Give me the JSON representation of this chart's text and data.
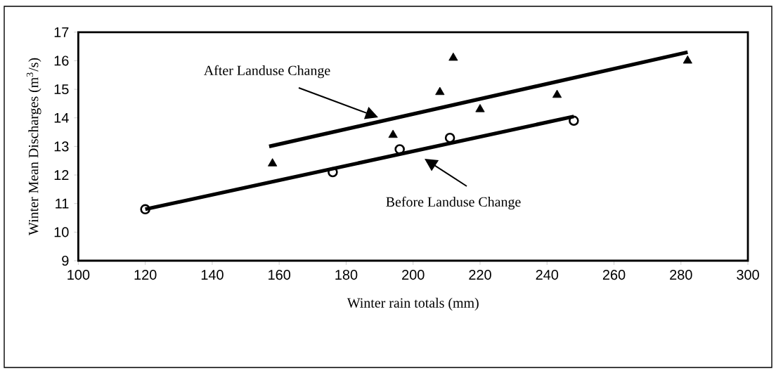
{
  "chart_data": {
    "type": "scatter",
    "xlabel": "Winter rain totals (mm)",
    "ylabel": "Winter Mean Discharges (m$^{3}$/s)",
    "xlim": [
      100,
      300
    ],
    "ylim": [
      9,
      17
    ],
    "xticks": [
      100,
      120,
      140,
      160,
      180,
      200,
      220,
      240,
      260,
      280,
      300
    ],
    "yticks": [
      9,
      10,
      11,
      12,
      13,
      14,
      15,
      16,
      17
    ],
    "grid": false,
    "series": [
      {
        "marker": "triangle",
        "color": "#000000",
        "x": [
          158,
          194,
          208,
          212,
          220,
          243,
          282
        ],
        "values": [
          12.4,
          13.4,
          14.9,
          16.1,
          14.3,
          14.8,
          16.0
        ]
      },
      {
        "marker": "circle",
        "color": "#000000",
        "x": [
          120,
          176,
          196,
          211,
          248
        ],
        "values": [
          10.8,
          12.1,
          12.9,
          13.3,
          13.9
        ]
      },
      {
        "type": "line",
        "marker": "none",
        "line_style": "solid",
        "color": "#000000",
        "x": [
          157,
          282
        ],
        "values": [
          13.0,
          16.3
        ]
      },
      {
        "type": "line",
        "marker": "none",
        "line_style": "solid",
        "color": "#000000",
        "x": [
          120,
          248
        ],
        "values": [
          10.8,
          14.05
        ]
      }
    ],
    "annotations": [
      "After Landuse Change",
      "Before Landuse Change"
    ]
  }
}
